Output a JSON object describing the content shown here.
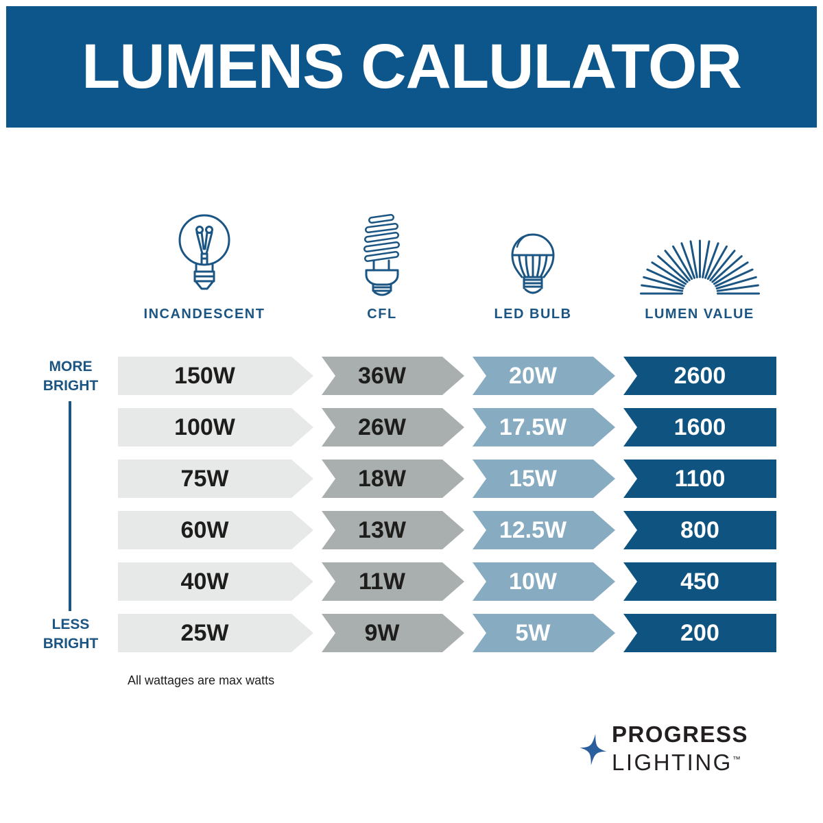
{
  "title": "LUMENS CALULATOR",
  "columns": [
    {
      "label": "INCANDESCENT",
      "icon": "incandescent-bulb-icon"
    },
    {
      "label": "CFL",
      "icon": "cfl-bulb-icon"
    },
    {
      "label": "LED BULB",
      "icon": "led-bulb-icon"
    },
    {
      "label": "LUMEN VALUE",
      "icon": "lumen-rays-icon"
    }
  ],
  "brightness_scale": {
    "more": "MORE BRIGHT",
    "less": "LESS BRIGHT"
  },
  "rows": [
    {
      "cells": [
        "150W",
        "36W",
        "20W",
        "2600"
      ]
    },
    {
      "cells": [
        "100W",
        "26W",
        "17.5W",
        "1600"
      ]
    },
    {
      "cells": [
        "75W",
        "18W",
        "15W",
        "1100"
      ]
    },
    {
      "cells": [
        "60W",
        "13W",
        "12.5W",
        "800"
      ]
    },
    {
      "cells": [
        "40W",
        "11W",
        "10W",
        "450"
      ]
    },
    {
      "cells": [
        "25W",
        "9W",
        "5W",
        "200"
      ]
    }
  ],
  "footnote": "All wattages are max watts",
  "logo": {
    "line1": "PROGRESS",
    "line2": "LIGHTING",
    "trademark": "™"
  },
  "colors": {
    "banner_blue": "#0D568C",
    "dark_blue_segment": "#0F5480",
    "steel_blue_segment": "#87ACC2",
    "gray_segment": "#A9AEAE",
    "light_gray_segment": "#E7E8E8",
    "label_blue": "#1B5583",
    "star_blue": "#2A5E9C",
    "text_black": "#1D1D1B"
  },
  "chart_data": {
    "type": "table",
    "title": "LUMENS CALULATOR",
    "columns": [
      "INCANDESCENT",
      "CFL",
      "LED BULB",
      "LUMEN VALUE"
    ],
    "rows": [
      [
        "150W",
        "36W",
        "20W",
        "2600"
      ],
      [
        "100W",
        "26W",
        "17.5W",
        "1600"
      ],
      [
        "75W",
        "18W",
        "15W",
        "1100"
      ],
      [
        "60W",
        "13W",
        "12.5W",
        "800"
      ],
      [
        "40W",
        "11W",
        "10W",
        "450"
      ],
      [
        "25W",
        "9W",
        "5W",
        "200"
      ]
    ],
    "row_order": "most bright (top) to least bright (bottom)",
    "footnote": "All wattages are max watts"
  }
}
